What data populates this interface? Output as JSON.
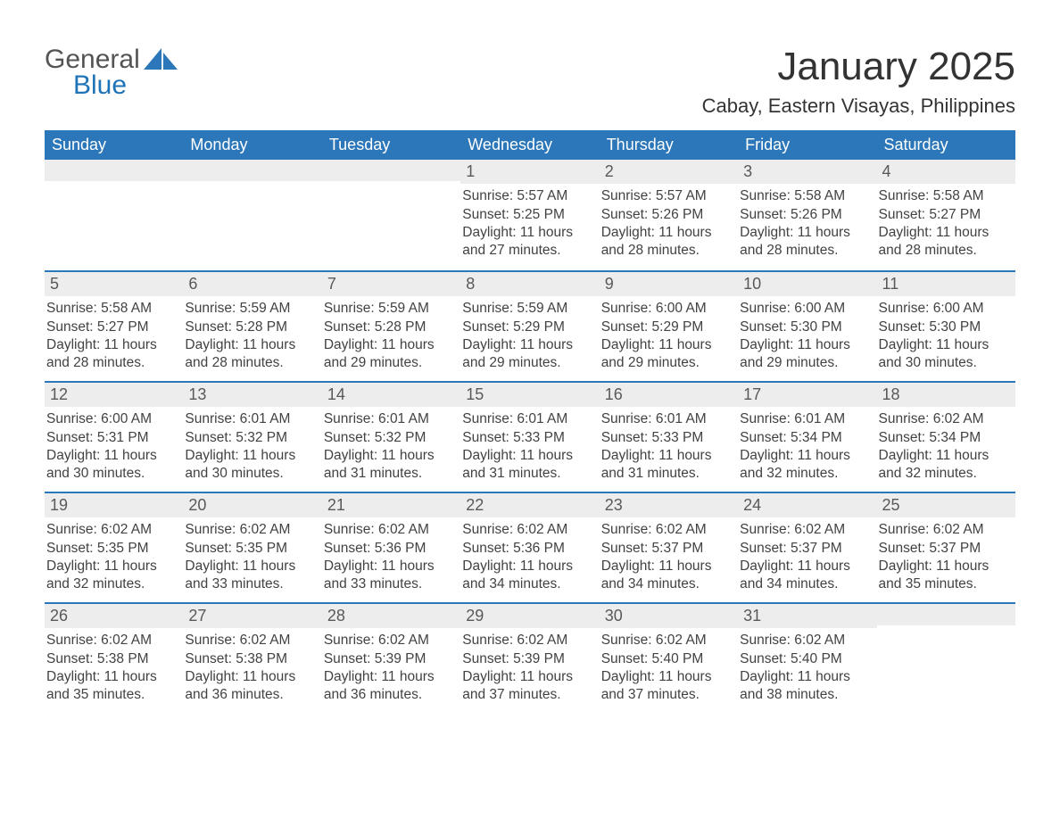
{
  "brand": {
    "line1": "General",
    "line2": "Blue",
    "text_color_main": "#545454",
    "text_color_accent": "#1f73b7",
    "sail_color": "#2b77b9"
  },
  "title": {
    "month_year": "January 2025",
    "location": "Cabay, Eastern Visayas, Philippines",
    "title_fontsize": 44,
    "subtitle_fontsize": 22,
    "color": "#333333"
  },
  "style": {
    "header_bg": "#2b77b9",
    "header_text": "#ffffff",
    "daynum_bg": "#ededed",
    "daynum_color": "#595959",
    "body_text": "#424242",
    "row_divider": "#2b77b9",
    "background": "#ffffff",
    "cell_fontsize": 15.5,
    "weekday_fontsize": 18
  },
  "weekdays": [
    "Sunday",
    "Monday",
    "Tuesday",
    "Wednesday",
    "Thursday",
    "Friday",
    "Saturday"
  ],
  "labels": {
    "sunrise": "Sunrise:",
    "sunset": "Sunset:",
    "daylight": "Daylight:"
  },
  "weeks": [
    [
      null,
      null,
      null,
      {
        "n": "1",
        "sunrise": "5:57 AM",
        "sunset": "5:25 PM",
        "daylight": "11 hours and 27 minutes."
      },
      {
        "n": "2",
        "sunrise": "5:57 AM",
        "sunset": "5:26 PM",
        "daylight": "11 hours and 28 minutes."
      },
      {
        "n": "3",
        "sunrise": "5:58 AM",
        "sunset": "5:26 PM",
        "daylight": "11 hours and 28 minutes."
      },
      {
        "n": "4",
        "sunrise": "5:58 AM",
        "sunset": "5:27 PM",
        "daylight": "11 hours and 28 minutes."
      }
    ],
    [
      {
        "n": "5",
        "sunrise": "5:58 AM",
        "sunset": "5:27 PM",
        "daylight": "11 hours and 28 minutes."
      },
      {
        "n": "6",
        "sunrise": "5:59 AM",
        "sunset": "5:28 PM",
        "daylight": "11 hours and 28 minutes."
      },
      {
        "n": "7",
        "sunrise": "5:59 AM",
        "sunset": "5:28 PM",
        "daylight": "11 hours and 29 minutes."
      },
      {
        "n": "8",
        "sunrise": "5:59 AM",
        "sunset": "5:29 PM",
        "daylight": "11 hours and 29 minutes."
      },
      {
        "n": "9",
        "sunrise": "6:00 AM",
        "sunset": "5:29 PM",
        "daylight": "11 hours and 29 minutes."
      },
      {
        "n": "10",
        "sunrise": "6:00 AM",
        "sunset": "5:30 PM",
        "daylight": "11 hours and 29 minutes."
      },
      {
        "n": "11",
        "sunrise": "6:00 AM",
        "sunset": "5:30 PM",
        "daylight": "11 hours and 30 minutes."
      }
    ],
    [
      {
        "n": "12",
        "sunrise": "6:00 AM",
        "sunset": "5:31 PM",
        "daylight": "11 hours and 30 minutes."
      },
      {
        "n": "13",
        "sunrise": "6:01 AM",
        "sunset": "5:32 PM",
        "daylight": "11 hours and 30 minutes."
      },
      {
        "n": "14",
        "sunrise": "6:01 AM",
        "sunset": "5:32 PM",
        "daylight": "11 hours and 31 minutes."
      },
      {
        "n": "15",
        "sunrise": "6:01 AM",
        "sunset": "5:33 PM",
        "daylight": "11 hours and 31 minutes."
      },
      {
        "n": "16",
        "sunrise": "6:01 AM",
        "sunset": "5:33 PM",
        "daylight": "11 hours and 31 minutes."
      },
      {
        "n": "17",
        "sunrise": "6:01 AM",
        "sunset": "5:34 PM",
        "daylight": "11 hours and 32 minutes."
      },
      {
        "n": "18",
        "sunrise": "6:02 AM",
        "sunset": "5:34 PM",
        "daylight": "11 hours and 32 minutes."
      }
    ],
    [
      {
        "n": "19",
        "sunrise": "6:02 AM",
        "sunset": "5:35 PM",
        "daylight": "11 hours and 32 minutes."
      },
      {
        "n": "20",
        "sunrise": "6:02 AM",
        "sunset": "5:35 PM",
        "daylight": "11 hours and 33 minutes."
      },
      {
        "n": "21",
        "sunrise": "6:02 AM",
        "sunset": "5:36 PM",
        "daylight": "11 hours and 33 minutes."
      },
      {
        "n": "22",
        "sunrise": "6:02 AM",
        "sunset": "5:36 PM",
        "daylight": "11 hours and 34 minutes."
      },
      {
        "n": "23",
        "sunrise": "6:02 AM",
        "sunset": "5:37 PM",
        "daylight": "11 hours and 34 minutes."
      },
      {
        "n": "24",
        "sunrise": "6:02 AM",
        "sunset": "5:37 PM",
        "daylight": "11 hours and 34 minutes."
      },
      {
        "n": "25",
        "sunrise": "6:02 AM",
        "sunset": "5:37 PM",
        "daylight": "11 hours and 35 minutes."
      }
    ],
    [
      {
        "n": "26",
        "sunrise": "6:02 AM",
        "sunset": "5:38 PM",
        "daylight": "11 hours and 35 minutes."
      },
      {
        "n": "27",
        "sunrise": "6:02 AM",
        "sunset": "5:38 PM",
        "daylight": "11 hours and 36 minutes."
      },
      {
        "n": "28",
        "sunrise": "6:02 AM",
        "sunset": "5:39 PM",
        "daylight": "11 hours and 36 minutes."
      },
      {
        "n": "29",
        "sunrise": "6:02 AM",
        "sunset": "5:39 PM",
        "daylight": "11 hours and 37 minutes."
      },
      {
        "n": "30",
        "sunrise": "6:02 AM",
        "sunset": "5:40 PM",
        "daylight": "11 hours and 37 minutes."
      },
      {
        "n": "31",
        "sunrise": "6:02 AM",
        "sunset": "5:40 PM",
        "daylight": "11 hours and 38 minutes."
      },
      null
    ]
  ]
}
